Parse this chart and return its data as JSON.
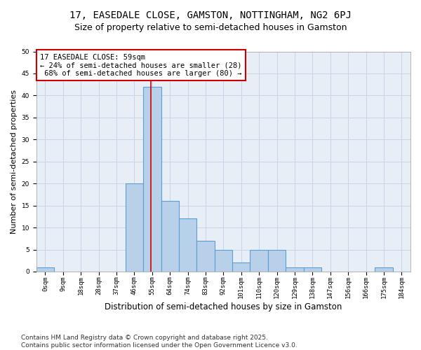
{
  "title": "17, EASEDALE CLOSE, GAMSTON, NOTTINGHAM, NG2 6PJ",
  "subtitle": "Size of property relative to semi-detached houses in Gamston",
  "xlabel": "Distribution of semi-detached houses by size in Gamston",
  "ylabel": "Number of semi-detached properties",
  "bin_labels": [
    "0sqm",
    "9sqm",
    "18sqm",
    "28sqm",
    "37sqm",
    "46sqm",
    "55sqm",
    "64sqm",
    "74sqm",
    "83sqm",
    "92sqm",
    "101sqm",
    "110sqm",
    "120sqm",
    "129sqm",
    "138sqm",
    "147sqm",
    "156sqm",
    "166sqm",
    "175sqm",
    "184sqm"
  ],
  "bar_values": [
    1,
    0,
    0,
    0,
    0,
    20,
    42,
    16,
    12,
    7,
    5,
    2,
    5,
    5,
    1,
    1,
    0,
    0,
    0,
    1,
    0
  ],
  "bar_color": "#b8d0ea",
  "bar_edge_color": "#5a9fd4",
  "vline_color": "#cc0000",
  "annotation_line1": "17 EASEDALE CLOSE: 59sqm",
  "annotation_line2": "← 24% of semi-detached houses are smaller (28)",
  "annotation_line3": " 68% of semi-detached houses are larger (80) →",
  "annotation_box_color": "#ffffff",
  "annotation_box_edge_color": "#cc0000",
  "ylim": [
    0,
    50
  ],
  "yticks": [
    0,
    5,
    10,
    15,
    20,
    25,
    30,
    35,
    40,
    45,
    50
  ],
  "grid_color": "#c8d4e8",
  "background_color": "#e8eef6",
  "footnote": "Contains HM Land Registry data © Crown copyright and database right 2025.\nContains public sector information licensed under the Open Government Licence v3.0.",
  "title_fontsize": 10,
  "subtitle_fontsize": 9,
  "xlabel_fontsize": 8.5,
  "ylabel_fontsize": 8,
  "tick_fontsize": 6.5,
  "annotation_fontsize": 7.5,
  "footnote_fontsize": 6.5,
  "vline_x_bin": 6,
  "vline_x_offset": 0.44
}
